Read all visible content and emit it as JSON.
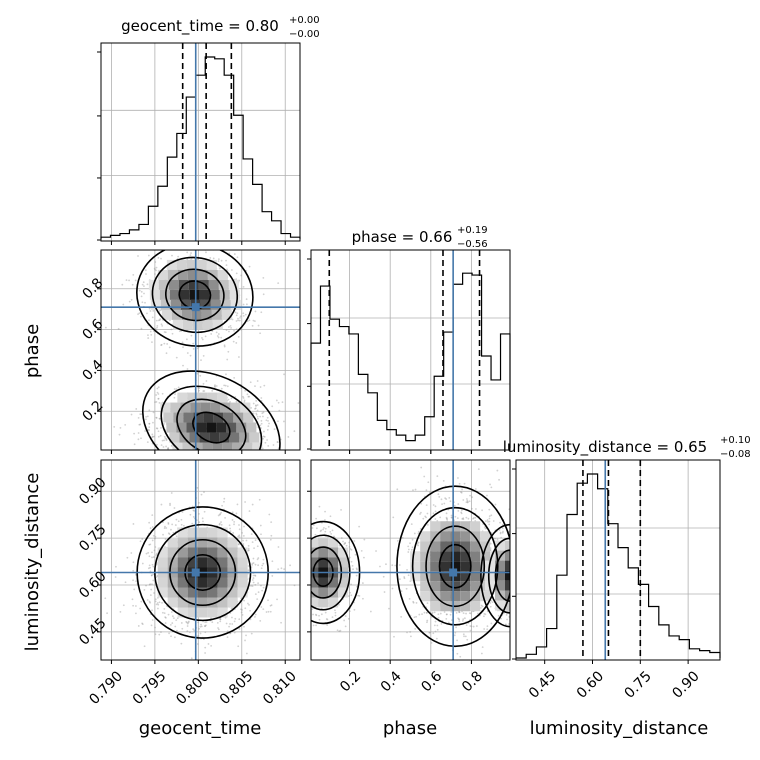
{
  "chart_data": {
    "type": "corner",
    "parameters": [
      {
        "name": "geocent_time",
        "xlabel": "geocent_time",
        "title_prefix": "geocent_time = ",
        "median": "0.80",
        "upper": "+0.00",
        "lower": "−0.00",
        "range": [
          0.7888,
          0.8117
        ],
        "ticks": [
          0.79,
          0.795,
          0.8,
          0.805,
          0.81
        ],
        "tick_labels": [
          "0.790",
          "0.795",
          "0.800",
          "0.805",
          "0.810"
        ],
        "quantiles": [
          0.7982,
          0.8009,
          0.8038
        ],
        "truth": 0.7997,
        "hist_counts": [
          0.01,
          0.02,
          0.03,
          0.05,
          0.08,
          0.18,
          0.29,
          0.45,
          0.58,
          0.78,
          0.9,
          1.0,
          0.99,
          0.9,
          0.68,
          0.44,
          0.3,
          0.15,
          0.1,
          0.03,
          0.01
        ]
      },
      {
        "name": "phase",
        "xlabel": "phase",
        "ylabel": "phase",
        "title_prefix": "phase = ",
        "median": "0.66",
        "upper": "+0.19",
        "lower": "−0.56",
        "range": [
          0.01,
          0.99
        ],
        "ticks": [
          0.2,
          0.4,
          0.6,
          0.8
        ],
        "tick_labels": [
          "0.2",
          "0.4",
          "0.6",
          "0.8"
        ],
        "quantiles": [
          0.1,
          0.66,
          0.84
        ],
        "truth": 0.71,
        "hist_counts": [
          0.57,
          0.88,
          0.7,
          0.66,
          0.62,
          0.4,
          0.3,
          0.15,
          0.1,
          0.07,
          0.04,
          0.07,
          0.17,
          0.39,
          0.63,
          0.89,
          0.95,
          0.94,
          0.5,
          0.37,
          0.62
        ]
      },
      {
        "name": "luminosity_distance",
        "xlabel": "luminosity_distance",
        "ylabel": "luminosity_distance",
        "title_prefix": "luminosity_distance = ",
        "median": "0.65",
        "upper": "+0.10",
        "lower": "−0.08",
        "range": [
          0.36,
          1.0
        ],
        "ticks": [
          0.45,
          0.6,
          0.75,
          0.9
        ],
        "tick_labels": [
          "0.45",
          "0.60",
          "0.75",
          "0.90"
        ],
        "quantiles": [
          0.57,
          0.65,
          0.75
        ],
        "truth": 0.64,
        "hist_counts": [
          0.0,
          0.02,
          0.06,
          0.16,
          0.45,
          0.78,
          0.95,
          1.0,
          0.92,
          0.73,
          0.6,
          0.49,
          0.4,
          0.28,
          0.18,
          0.12,
          0.1,
          0.05,
          0.04,
          0.03
        ]
      }
    ],
    "marginal_ylabels": [
      "",
      "",
      ""
    ],
    "grid": true,
    "truth_color": "#4477aa",
    "pairs": [
      {
        "x": "geocent_time",
        "y": "phase"
      },
      {
        "x": "geocent_time",
        "y": "luminosity_distance"
      },
      {
        "x": "phase",
        "y": "luminosity_distance"
      }
    ]
  }
}
